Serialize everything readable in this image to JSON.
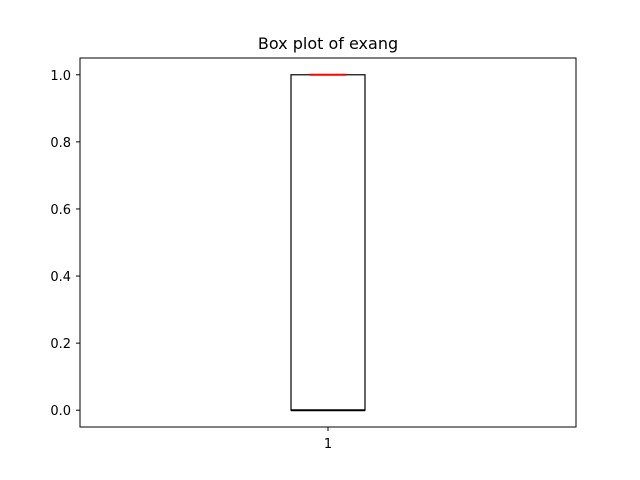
{
  "chart_data": {
    "type": "box",
    "title": "Box plot of exang",
    "xlabel": "",
    "ylabel": "",
    "categories": [
      "1"
    ],
    "ylim": [
      -0.05,
      1.05
    ],
    "yticks": [
      0.0,
      0.2,
      0.4,
      0.6,
      0.8,
      1.0
    ],
    "ytick_labels": [
      "0.0",
      "0.2",
      "0.4",
      "0.6",
      "0.8",
      "1.0"
    ],
    "boxes": [
      {
        "name": "1",
        "whisker_low": 0.0,
        "q1": 0.0,
        "median": 1.0,
        "q3": 1.0,
        "whisker_high": 1.0
      }
    ],
    "grid": false,
    "colors": {
      "box": "#000000",
      "median": "#ff0000",
      "whisker": "#000000"
    }
  }
}
